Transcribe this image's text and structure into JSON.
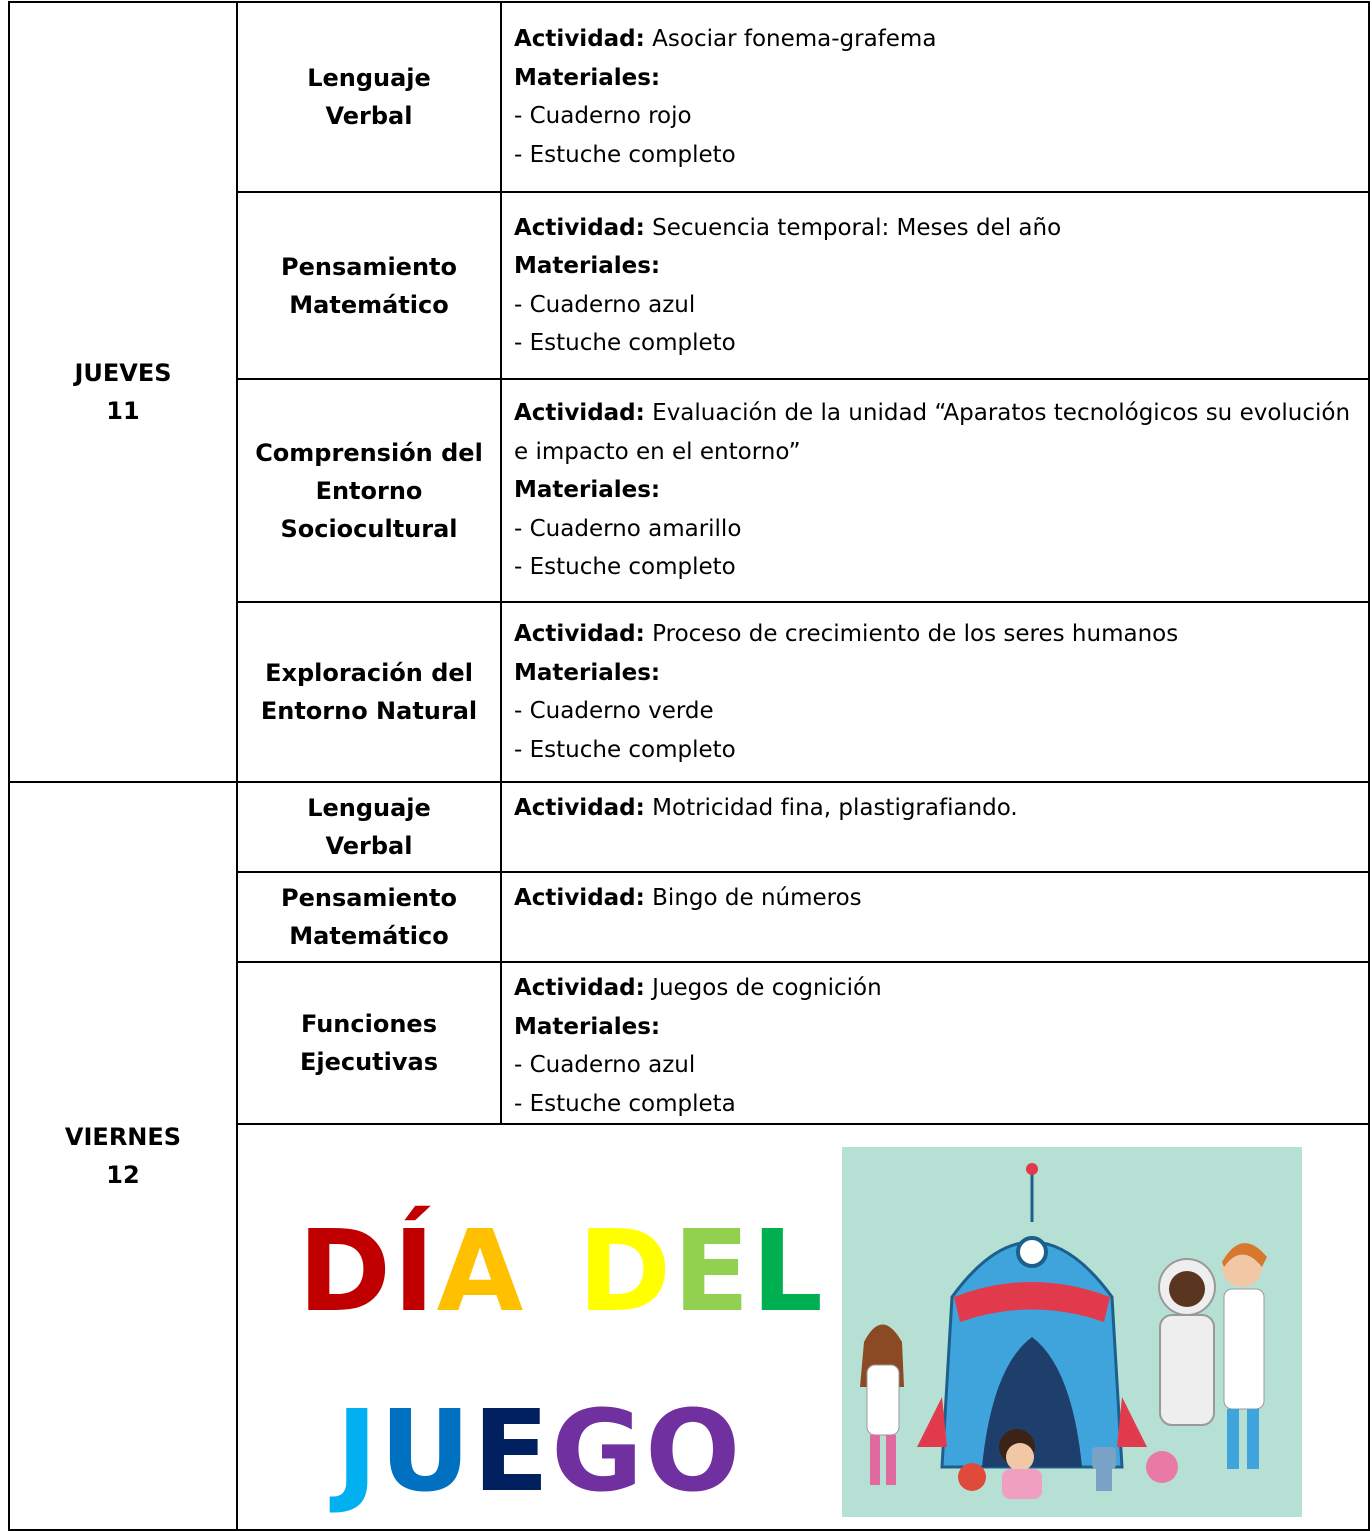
{
  "days": [
    {
      "name": "JUEVES",
      "number": "11",
      "rows": [
        {
          "subject": [
            "Lenguaje",
            "Verbal"
          ],
          "activity_label": "Actividad:",
          "activity": "Asociar fonema-grafema",
          "materials_label": "Materiales:",
          "materials": [
            "- Cuaderno rojo",
            "- Estuche completo"
          ]
        },
        {
          "subject": [
            "Pensamiento",
            "Matemático"
          ],
          "activity_label": "Actividad:",
          "activity": "Secuencia temporal: Meses del año",
          "materials_label": "Materiales:",
          "materials": [
            "- Cuaderno azul",
            "- Estuche completo"
          ]
        },
        {
          "subject": [
            "Comprensión del",
            "Entorno",
            "Sociocultural"
          ],
          "activity_label": "Actividad:",
          "activity": "Evaluación de la unidad “Aparatos tecnológicos su evolución e impacto en el entorno”",
          "materials_label": "Materiales:",
          "materials": [
            "- Cuaderno amarillo",
            "- Estuche completo"
          ]
        },
        {
          "subject": [
            "Exploración del",
            "Entorno Natural"
          ],
          "activity_label": "Actividad:",
          "activity": "Proceso de crecimiento de los seres humanos",
          "materials_label": "Materiales:",
          "materials": [
            "- Cuaderno verde",
            "- Estuche completo"
          ]
        }
      ]
    },
    {
      "name": "VIERNES",
      "number": "12",
      "rows": [
        {
          "subject": [
            "Lenguaje",
            "Verbal"
          ],
          "activity_label": "Actividad:",
          "activity": "Motricidad fina, plastigrafiando."
        },
        {
          "subject": [
            "Pensamiento",
            "Matemático"
          ],
          "activity_label": "Actividad:",
          "activity": "Bingo de números"
        },
        {
          "subject": [
            "Funciones",
            "Ejecutivas"
          ],
          "activity_label": "Actividad:",
          "activity": "Juegos de cognición",
          "materials_label": "Materiales:",
          "materials": [
            "- Cuaderno azul",
            "- Estuche completa"
          ]
        }
      ],
      "banner": {
        "words": [
          [
            "D",
            "Í",
            "A"
          ],
          [
            "D",
            "E",
            "L"
          ],
          [
            "J",
            "U",
            "E",
            "G",
            "O"
          ]
        ]
      }
    }
  ]
}
